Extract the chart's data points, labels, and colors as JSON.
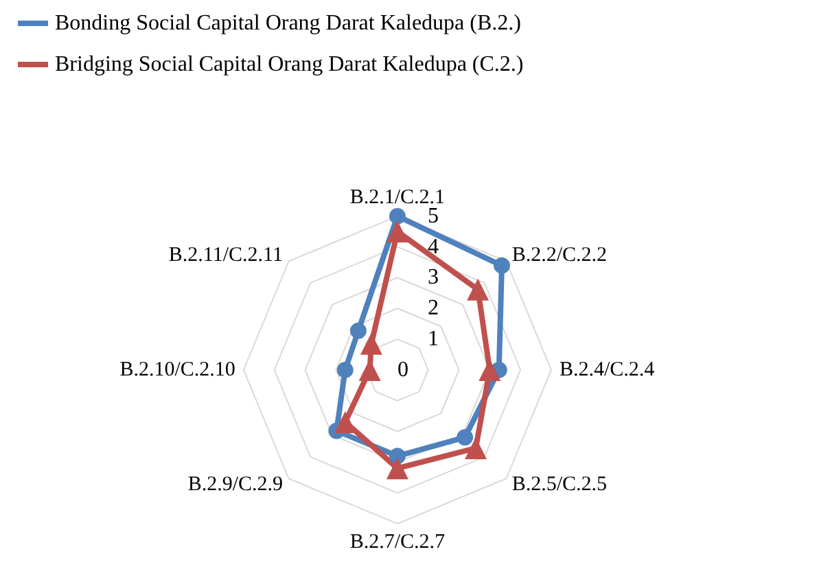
{
  "chart_data": {
    "type": "radar",
    "categories": [
      "B.2.1/C.2.1",
      "B.2.2/C.2.2",
      "B.2.4/C.2.4",
      "B.2.5/C.2.5",
      "B.2.7/C.2.7",
      "B.2.9/C.2.9",
      "B.2.10/C.2.10",
      "B.2.11/C.2.11"
    ],
    "series": [
      {
        "name": "Bonding Social Capital Orang Darat Kaledupa (B.2.)",
        "color": "#4f81bd",
        "marker": "circle",
        "values": [
          5.0,
          4.8,
          3.3,
          3.1,
          2.8,
          2.8,
          1.7,
          1.8
        ]
      },
      {
        "name": "Bridging Social Capital Orang Darat Kaledupa (C.2.)",
        "color": "#c0504d",
        "marker": "triangle",
        "values": [
          4.5,
          3.7,
          3.0,
          3.6,
          3.2,
          2.4,
          0.9,
          1.2
        ]
      }
    ],
    "ylim": [
      0,
      5
    ],
    "yticks": [
      0,
      1,
      2,
      3,
      4,
      5
    ],
    "grid": true,
    "legend": "top left"
  }
}
